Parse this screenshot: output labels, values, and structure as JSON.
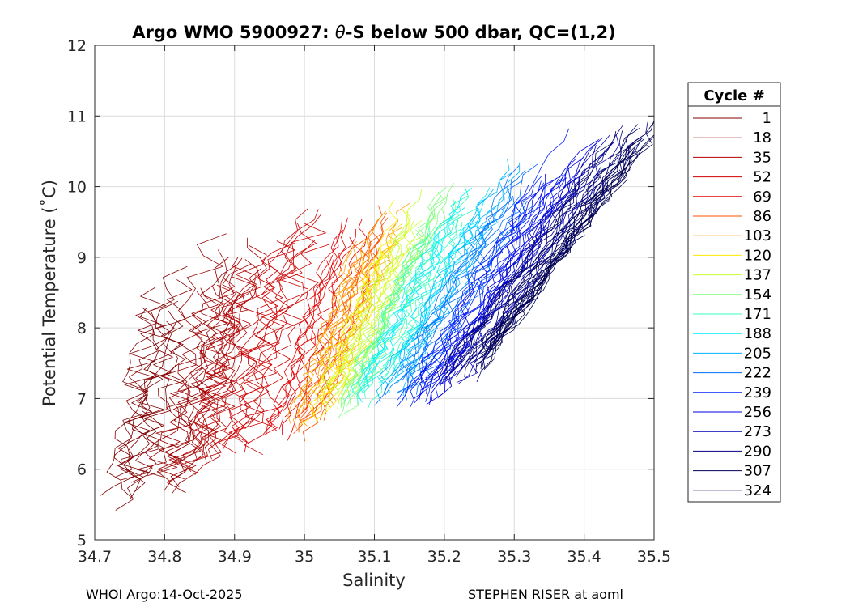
{
  "chart_data": {
    "type": "line",
    "title_prefix": "Argo WMO 5900927: ",
    "title_theta": "θ",
    "title_suffix": "-S below 500 dbar,  QC=(1,2)",
    "xlabel": "Salinity",
    "ylabel": "Potential Temperature (˚C)",
    "xlim": [
      34.7,
      35.5
    ],
    "ylim": [
      5,
      12
    ],
    "xticks": [
      "34.7",
      "34.8",
      "34.9",
      "35",
      "35.1",
      "35.2",
      "35.3",
      "35.4",
      "35.5"
    ],
    "yticks": [
      "5",
      "6",
      "7",
      "8",
      "9",
      "10",
      "11",
      "12"
    ],
    "grid": true,
    "legend_title": "Cycle #",
    "legend_position": "outside-right",
    "series": [
      {
        "name": "1",
        "color": "#800000",
        "s0": 34.74,
        "t_range": [
          5.4,
          8.9
        ]
      },
      {
        "name": "18",
        "color": "#9a0000",
        "s0": 34.8,
        "t_range": [
          5.6,
          9.4
        ]
      },
      {
        "name": "35",
        "color": "#b40000",
        "s0": 34.84,
        "t_range": [
          5.8,
          9.4
        ]
      },
      {
        "name": "52",
        "color": "#cf0000",
        "s0": 34.9,
        "t_range": [
          6.2,
          9.7
        ]
      },
      {
        "name": "69",
        "color": "#e60000",
        "s0": 34.96,
        "t_range": [
          6.3,
          9.8
        ]
      },
      {
        "name": "86",
        "color": "#ff5000",
        "s0": 34.98,
        "t_range": [
          6.3,
          9.8
        ]
      },
      {
        "name": "103",
        "color": "#ff9e00",
        "s0": 34.995,
        "t_range": [
          6.5,
          9.8
        ]
      },
      {
        "name": "120",
        "color": "#ffea00",
        "s0": 35.01,
        "t_range": [
          6.6,
          9.9
        ]
      },
      {
        "name": "137",
        "color": "#c8ff2e",
        "s0": 35.03,
        "t_range": [
          6.7,
          10.0
        ]
      },
      {
        "name": "154",
        "color": "#7cff7a",
        "s0": 35.05,
        "t_range": [
          6.7,
          10.1
        ]
      },
      {
        "name": "171",
        "color": "#36ffc0",
        "s0": 35.07,
        "t_range": [
          6.8,
          10.1
        ]
      },
      {
        "name": "188",
        "color": "#00f0ff",
        "s0": 35.09,
        "t_range": [
          6.9,
          10.2
        ]
      },
      {
        "name": "205",
        "color": "#00b4ff",
        "s0": 35.11,
        "t_range": [
          6.9,
          10.4
        ]
      },
      {
        "name": "222",
        "color": "#006cff",
        "s0": 35.13,
        "t_range": [
          6.9,
          10.5
        ]
      },
      {
        "name": "239",
        "color": "#0022ff",
        "s0": 35.15,
        "t_range": [
          6.8,
          10.9
        ]
      },
      {
        "name": "256",
        "color": "#0000e6",
        "s0": 35.17,
        "t_range": [
          6.9,
          10.8
        ]
      },
      {
        "name": "273",
        "color": "#0000b4",
        "s0": 35.19,
        "t_range": [
          7.0,
          10.8
        ]
      },
      {
        "name": "290",
        "color": "#000082",
        "s0": 35.21,
        "t_range": [
          7.1,
          11.0
        ]
      },
      {
        "name": "307",
        "color": "#00005a",
        "s0": 35.22,
        "t_range": [
          7.3,
          11.0
        ]
      },
      {
        "name": "324",
        "color": "#000050",
        "s0": 35.23,
        "t_range": [
          7.3,
          11.0
        ]
      }
    ]
  },
  "footer": {
    "left": "WHOI Argo:14-Oct-2025",
    "right": "STEPHEN RISER at aoml"
  }
}
